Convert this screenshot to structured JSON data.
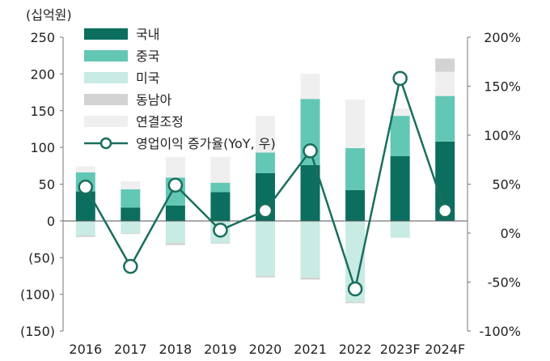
{
  "chart_data": {
    "type": "bar",
    "unit_label": "(십억원)",
    "categories": [
      "2016",
      "2017",
      "2018",
      "2019",
      "2020",
      "2021",
      "2022",
      "2023F",
      "2024F"
    ],
    "y_left": {
      "lim": [
        -150,
        250
      ],
      "ticks": [
        "250",
        "200",
        "150",
        "100",
        "50",
        "0",
        "(50)",
        "(100)",
        "(150)"
      ],
      "tick_values": [
        250,
        200,
        150,
        100,
        50,
        0,
        -50,
        -100,
        -150
      ]
    },
    "y_right": {
      "lim": [
        -100,
        200
      ],
      "ticks": [
        "200%",
        "150%",
        "100%",
        "50%",
        "0%",
        "-50%",
        "-100%"
      ],
      "tick_values": [
        200,
        150,
        100,
        50,
        0,
        -50,
        -100
      ]
    },
    "series": [
      {
        "name": "국내",
        "color": "#0b6e5f",
        "axis": "left",
        "values": [
          40,
          18,
          21,
          39,
          65,
          76,
          42,
          88,
          108
        ]
      },
      {
        "name": "중국",
        "color": "#63c7b5",
        "axis": "left",
        "values": [
          26,
          25,
          38,
          13,
          28,
          90,
          57,
          55,
          62
        ]
      },
      {
        "name": "미국",
        "color": "#c8ebe3",
        "axis": "left",
        "values": [
          -20,
          -17,
          -30,
          -30,
          -75,
          -77,
          -110,
          -23,
          0
        ]
      },
      {
        "name": "동남아",
        "color": "#d3d3d3",
        "axis": "left",
        "values": [
          -2,
          -1,
          -3,
          -1,
          -2,
          -3,
          -2,
          0,
          0
        ]
      },
      {
        "name": "연결조정",
        "color": "#efefef",
        "axis": "left",
        "values": [
          8,
          11,
          28,
          35,
          50,
          34,
          66,
          10,
          33
        ]
      }
    ],
    "extra_stack": [
      {
        "category": "2024F",
        "color": "#d3d3d3",
        "value": 18
      }
    ],
    "line": {
      "name": "영업이익 증가율(YoY, 우)",
      "color": "#1a6e5c",
      "axis": "right",
      "values": [
        47,
        -34,
        49,
        3,
        23,
        84,
        -57,
        158,
        23
      ]
    },
    "grid": false,
    "legend_position": "top-left"
  }
}
